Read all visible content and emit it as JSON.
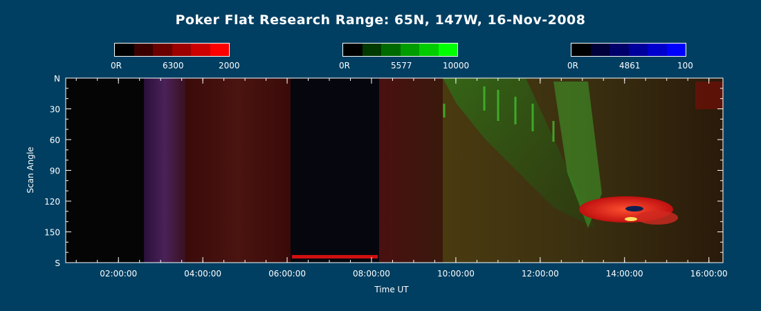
{
  "title": "Poker Flat Research Range: 65N, 147W, 16-Nov-2008",
  "colorbars": [
    {
      "wavelength": "6300",
      "min_label": "0R",
      "max_label": "2000",
      "colors": [
        "#000000",
        "#3a0000",
        "#6a0000",
        "#9c0000",
        "#cc0000",
        "#ff0000"
      ]
    },
    {
      "wavelength": "5577",
      "min_label": "0R",
      "max_label": "10000",
      "colors": [
        "#000000",
        "#003a00",
        "#006a00",
        "#009c00",
        "#00cc00",
        "#00ff00"
      ]
    },
    {
      "wavelength": "4861",
      "min_label": "0R",
      "max_label": "100",
      "colors": [
        "#000000",
        "#00003a",
        "#00006a",
        "#00009c",
        "#0000cc",
        "#0000ff"
      ]
    }
  ],
  "chart_data": {
    "type": "heatmap",
    "title": "Poker Flat Research Range: 65N, 147W, 16-Nov-2008",
    "xlabel": "Time UT",
    "ylabel": "Scan Angle",
    "x_range": [
      "00:45:00",
      "16:20:00"
    ],
    "x_ticks": [
      "02:00:00",
      "04:00:00",
      "06:00:00",
      "08:00:00",
      "10:00:00",
      "12:00:00",
      "14:00:00",
      "16:00:00"
    ],
    "y_range": [
      0,
      180
    ],
    "y_ticks": [
      {
        "value": 0,
        "label": "N"
      },
      {
        "value": 30,
        "label": "30"
      },
      {
        "value": 60,
        "label": "60"
      },
      {
        "value": 90,
        "label": "90"
      },
      {
        "value": 120,
        "label": "120"
      },
      {
        "value": 150,
        "label": "150"
      },
      {
        "value": 180,
        "label": "S"
      }
    ]
  }
}
